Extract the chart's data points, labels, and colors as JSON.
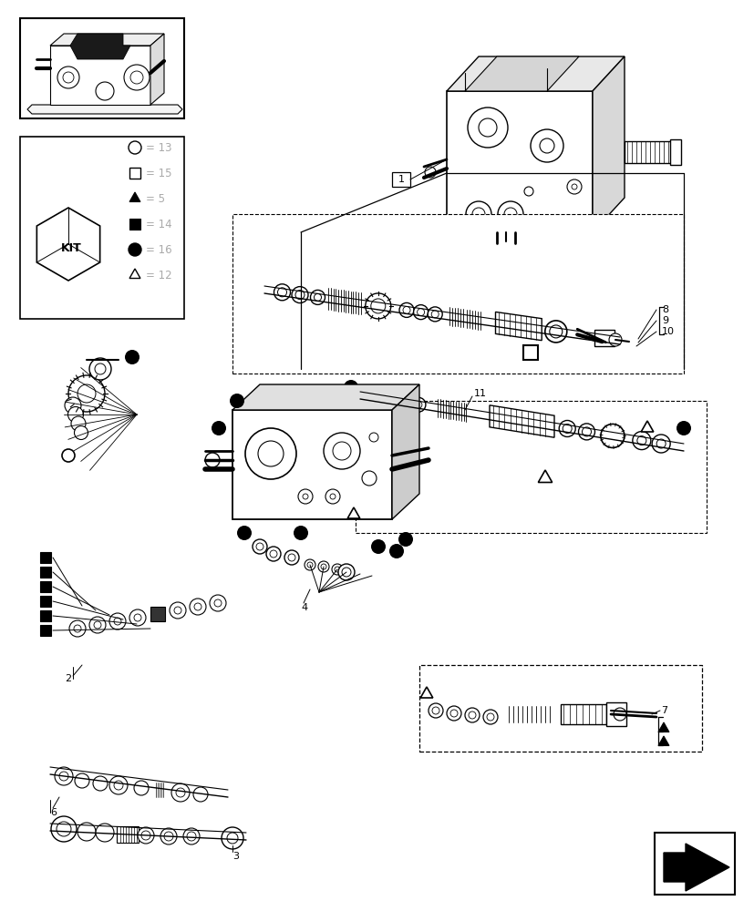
{
  "bg_color": "#ffffff",
  "figure_size": [
    8.28,
    10.0
  ],
  "dpi": 100,
  "line_color": "#000000",
  "gray_text": "#aaaaaa",
  "kit_symbols": [
    {
      "sym": "circle_open",
      "num": "13"
    },
    {
      "sym": "square_open",
      "num": "15"
    },
    {
      "sym": "triangle_filled",
      "num": "5"
    },
    {
      "sym": "square_filled",
      "num": "14"
    },
    {
      "sym": "circle_filled",
      "num": "16"
    },
    {
      "sym": "triangle_open",
      "num": "12"
    }
  ]
}
